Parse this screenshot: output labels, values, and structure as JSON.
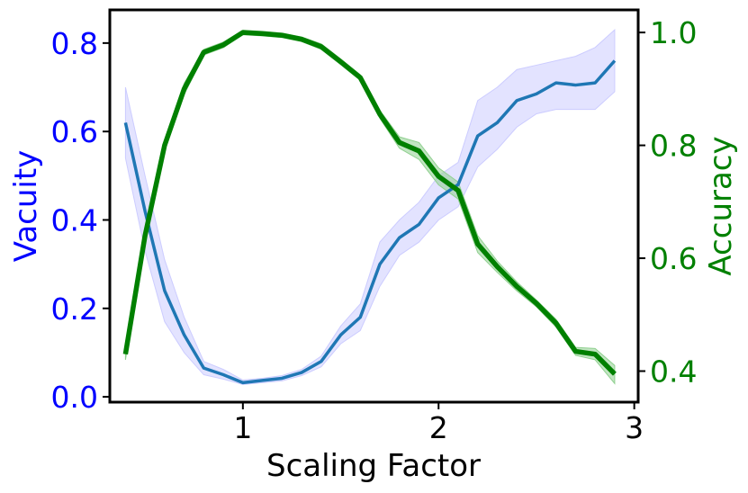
{
  "chart_data": {
    "type": "line",
    "xlabel": "Scaling Factor",
    "ylabel_left": "Vacuity",
    "ylabel_right": "Accuracy",
    "xlim": [
      0.32,
      3.02
    ],
    "ylim_left": [
      -0.012,
      0.875
    ],
    "ylim_right": [
      0.345,
      1.04
    ],
    "x_ticks": [
      {
        "v": 1,
        "label": "1"
      },
      {
        "v": 2,
        "label": "2"
      },
      {
        "v": 3,
        "label": "3"
      }
    ],
    "y_left_ticks": [
      {
        "v": 0.0,
        "label": "0.0"
      },
      {
        "v": 0.2,
        "label": "0.2"
      },
      {
        "v": 0.4,
        "label": "0.4"
      },
      {
        "v": 0.6,
        "label": "0.6"
      },
      {
        "v": 0.8,
        "label": "0.8"
      }
    ],
    "y_right_ticks": [
      {
        "v": 0.4,
        "label": "0.4"
      },
      {
        "v": 0.6,
        "label": "0.6"
      },
      {
        "v": 0.8,
        "label": "0.8"
      },
      {
        "v": 1.0,
        "label": "1.0"
      }
    ],
    "colors": {
      "vacuity": "#1f77b4",
      "vacuity_band": "#ccccff",
      "accuracy": "#008000",
      "accuracy_band": "#90d090",
      "left_axis_text": "#0000ff",
      "right_axis_text": "#008000",
      "frame": "#000000"
    },
    "x": [
      0.4,
      0.5,
      0.6,
      0.7,
      0.8,
      0.9,
      1.0,
      1.1,
      1.2,
      1.3,
      1.4,
      1.5,
      1.6,
      1.7,
      1.8,
      1.9,
      2.0,
      2.1,
      2.2,
      2.3,
      2.4,
      2.5,
      2.6,
      2.7,
      2.8,
      2.9
    ],
    "series": [
      {
        "axis": "left",
        "values": [
          0.62,
          0.42,
          0.24,
          0.14,
          0.065,
          0.05,
          0.032,
          0.037,
          0.042,
          0.055,
          0.08,
          0.14,
          0.18,
          0.3,
          0.36,
          0.39,
          0.45,
          0.48,
          0.59,
          0.62,
          0.67,
          0.685,
          0.71,
          0.705,
          0.71,
          0.76
        ],
        "lower": [
          0.54,
          0.33,
          0.17,
          0.1,
          0.05,
          0.04,
          0.028,
          0.032,
          0.036,
          0.048,
          0.068,
          0.12,
          0.15,
          0.25,
          0.32,
          0.35,
          0.4,
          0.43,
          0.52,
          0.56,
          0.61,
          0.64,
          0.65,
          0.65,
          0.65,
          0.69
        ],
        "upper": [
          0.7,
          0.5,
          0.31,
          0.18,
          0.08,
          0.062,
          0.038,
          0.042,
          0.048,
          0.062,
          0.092,
          0.16,
          0.21,
          0.35,
          0.4,
          0.44,
          0.5,
          0.53,
          0.67,
          0.7,
          0.74,
          0.75,
          0.76,
          0.77,
          0.79,
          0.83
        ]
      },
      {
        "axis": "right",
        "values": [
          0.43,
          0.64,
          0.8,
          0.9,
          0.965,
          0.978,
          1.0,
          0.998,
          0.995,
          0.988,
          0.975,
          0.948,
          0.92,
          0.855,
          0.805,
          0.79,
          0.745,
          0.72,
          0.625,
          0.585,
          0.55,
          0.52,
          0.485,
          0.435,
          0.43,
          0.395
        ],
        "lower": [
          0.42,
          0.63,
          0.79,
          0.89,
          0.96,
          0.973,
          0.996,
          0.994,
          0.991,
          0.984,
          0.97,
          0.943,
          0.915,
          0.848,
          0.795,
          0.775,
          0.73,
          0.705,
          0.61,
          0.575,
          0.542,
          0.514,
          0.478,
          0.428,
          0.42,
          0.378
        ],
        "upper": [
          0.44,
          0.65,
          0.81,
          0.91,
          0.97,
          0.983,
          1.004,
          1.002,
          0.999,
          0.992,
          0.98,
          0.953,
          0.925,
          0.862,
          0.815,
          0.805,
          0.76,
          0.735,
          0.64,
          0.595,
          0.558,
          0.526,
          0.492,
          0.442,
          0.44,
          0.41
        ]
      }
    ],
    "grid": false,
    "legend": "none"
  }
}
